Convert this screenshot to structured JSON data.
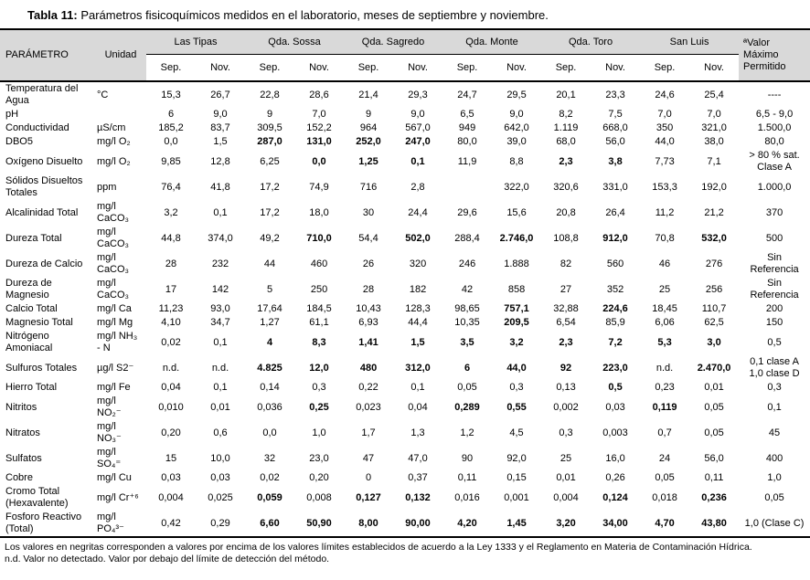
{
  "title": {
    "label": "Tabla 11:",
    "text": "Parámetros fisicoquímicos medidos en el laboratorio, meses de septiembre y noviembre."
  },
  "table": {
    "param_header": "PARÁMETRO",
    "unit_header": "Unidad",
    "limit_header": "ªValor\nMáximo\nPermitido",
    "stations": [
      "Las Tipas",
      "Qda. Sossa",
      "Qda. Sagredo",
      "Qda. Monte",
      "Qda. Toro",
      "San Luis"
    ],
    "months": [
      "Sep.",
      "Nov."
    ],
    "header_bg_color": "#d9d9d9",
    "rows": [
      {
        "param": "Temperatura del Agua",
        "unit": "°C",
        "values": [
          "15,3",
          "26,7",
          "22,8",
          "28,6",
          "21,4",
          "29,3",
          "24,7",
          "29,5",
          "20,1",
          "23,3",
          "24,6",
          "25,4"
        ],
        "bold": [],
        "limit": "----"
      },
      {
        "param": "pH",
        "unit": "",
        "values": [
          "6",
          "9,0",
          "9",
          "7,0",
          "9",
          "9,0",
          "6,5",
          "9,0",
          "8,2",
          "7,5",
          "7,0",
          "7,0"
        ],
        "bold": [],
        "limit": "6,5 - 9,0"
      },
      {
        "param": "Conductividad",
        "unit": "µS/cm",
        "values": [
          "185,2",
          "83,7",
          "309,5",
          "152,2",
          "964",
          "567,0",
          "949",
          "642,0",
          "1.119",
          "668,0",
          "350",
          "321,0"
        ],
        "bold": [],
        "limit": "1.500,0"
      },
      {
        "param": "DBO5",
        "unit": "mg/l O₂",
        "values": [
          "0,0",
          "1,5",
          "287,0",
          "131,0",
          "252,0",
          "247,0",
          "80,0",
          "39,0",
          "68,0",
          "56,0",
          "44,0",
          "38,0"
        ],
        "bold": [
          2,
          3,
          4,
          5
        ],
        "limit": "80,0"
      },
      {
        "param": "Oxígeno Disuelto",
        "unit": "mg/l O₂",
        "values": [
          "9,85",
          "12,8",
          "6,25",
          "0,0",
          "1,25",
          "0,1",
          "11,9",
          "8,8",
          "2,3",
          "3,8",
          "7,73",
          "7,1"
        ],
        "bold": [
          3,
          4,
          5,
          8,
          9
        ],
        "limit": "> 80 % sat.\nClase A"
      },
      {
        "param": "Sólidos Disueltos Totales",
        "unit": "ppm",
        "values": [
          "76,4",
          "41,8",
          "17,2",
          "74,9",
          "716",
          "2,8",
          "",
          "322,0",
          "320,6",
          "331,0",
          "153,3",
          "192,0"
        ],
        "bold": [],
        "limit": "1.000,0"
      },
      {
        "param": "Alcalinidad Total",
        "unit": "mg/l\nCaCO₃",
        "values": [
          "3,2",
          "0,1",
          "17,2",
          "18,0",
          "30",
          "24,4",
          "29,6",
          "15,6",
          "20,8",
          "26,4",
          "11,2",
          "21,2"
        ],
        "bold": [],
        "limit": "370"
      },
      {
        "param": "Dureza Total",
        "unit": "mg/l\nCaCO₃",
        "values": [
          "44,8",
          "374,0",
          "49,2",
          "710,0",
          "54,4",
          "502,0",
          "288,4",
          "2.746,0",
          "108,8",
          "912,0",
          "70,8",
          "532,0"
        ],
        "bold": [
          3,
          5,
          7,
          9,
          11
        ],
        "limit": "500"
      },
      {
        "param": "Dureza de Calcio",
        "unit": "mg/l\nCaCO₃",
        "values": [
          "28",
          "232",
          "44",
          "460",
          "26",
          "320",
          "246",
          "1.888",
          "82",
          "560",
          "46",
          "276"
        ],
        "bold": [],
        "limit": "Sin\nReferencia"
      },
      {
        "param": "Dureza de Magnesio",
        "unit": "mg/l\nCaCO₃",
        "values": [
          "17",
          "142",
          "5",
          "250",
          "28",
          "182",
          "42",
          "858",
          "27",
          "352",
          "25",
          "256"
        ],
        "bold": [],
        "limit": "Sin\nReferencia"
      },
      {
        "param": "Calcio Total",
        "unit": "mg/l Ca",
        "values": [
          "11,23",
          "93,0",
          "17,64",
          "184,5",
          "10,43",
          "128,3",
          "98,65",
          "757,1",
          "32,88",
          "224,6",
          "18,45",
          "110,7"
        ],
        "bold": [
          7,
          9
        ],
        "limit": "200"
      },
      {
        "param": "Magnesio Total",
        "unit": "mg/l Mg",
        "values": [
          "4,10",
          "34,7",
          "1,27",
          "61,1",
          "6,93",
          "44,4",
          "10,35",
          "209,5",
          "6,54",
          "85,9",
          "6,06",
          "62,5"
        ],
        "bold": [
          7
        ],
        "limit": "150"
      },
      {
        "param": "Nitrógeno Amoniacal",
        "unit": "mg/l NH₃\n- N",
        "values": [
          "0,02",
          "0,1",
          "4",
          "8,3",
          "1,41",
          "1,5",
          "3,5",
          "3,2",
          "2,3",
          "7,2",
          "5,3",
          "3,0"
        ],
        "bold": [
          2,
          3,
          4,
          5,
          6,
          7,
          8,
          9,
          10,
          11
        ],
        "limit": "0,5"
      },
      {
        "param": "Sulfuros Totales",
        "unit": "µg/l S2⁻",
        "values": [
          "n.d.",
          "n.d.",
          "4.825",
          "12,0",
          "480",
          "312,0",
          "6",
          "44,0",
          "92",
          "223,0",
          "n.d.",
          "2.470,0"
        ],
        "bold": [
          2,
          3,
          4,
          5,
          6,
          7,
          8,
          9,
          11
        ],
        "limit": "0,1 clase A\n1,0 clase D"
      },
      {
        "param": "Hierro Total",
        "unit": "mg/l Fe",
        "values": [
          "0,04",
          "0,1",
          "0,14",
          "0,3",
          "0,22",
          "0,1",
          "0,05",
          "0,3",
          "0,13",
          "0,5",
          "0,23",
          "0,01"
        ],
        "bold": [
          9
        ],
        "limit": "0,3"
      },
      {
        "param": "Nitritos",
        "unit": "mg/l\nNO₂⁻",
        "values": [
          "0,010",
          "0,01",
          "0,036",
          "0,25",
          "0,023",
          "0,04",
          "0,289",
          "0,55",
          "0,002",
          "0,03",
          "0,119",
          "0,05"
        ],
        "bold": [
          3,
          6,
          7,
          10
        ],
        "limit": "0,1"
      },
      {
        "param": "Nitratos",
        "unit": "mg/l\nNO₃⁻",
        "values": [
          "0,20",
          "0,6",
          "0,0",
          "1,0",
          "1,7",
          "1,3",
          "1,2",
          "4,5",
          "0,3",
          "0,003",
          "0,7",
          "0,05"
        ],
        "bold": [],
        "limit": "45"
      },
      {
        "param": "Sulfatos",
        "unit": "mg/l\nSO₄⁼",
        "values": [
          "15",
          "10,0",
          "32",
          "23,0",
          "47",
          "47,0",
          "90",
          "92,0",
          "25",
          "16,0",
          "24",
          "56,0"
        ],
        "bold": [],
        "limit": "400"
      },
      {
        "param": "Cobre",
        "unit": "mg/l Cu",
        "values": [
          "0,03",
          "0,03",
          "0,02",
          "0,20",
          "0",
          "0,37",
          "0,11",
          "0,15",
          "0,01",
          "0,26",
          "0,05",
          "0,11"
        ],
        "bold": [],
        "limit": "1,0"
      },
      {
        "param": "Cromo Total (Hexavalente)",
        "unit": "mg/l Cr⁺⁶",
        "values": [
          "0,004",
          "0,025",
          "0,059",
          "0,008",
          "0,127",
          "0,132",
          "0,016",
          "0,001",
          "0,004",
          "0,124",
          "0,018",
          "0,236"
        ],
        "bold": [
          2,
          4,
          5,
          9,
          11
        ],
        "limit": "0,05"
      },
      {
        "param": "Fosforo Reactivo (Total)",
        "unit": "mg/l\nPO₄³⁻",
        "values": [
          "0,42",
          "0,29",
          "6,60",
          "50,90",
          "8,00",
          "90,00",
          "4,20",
          "1,45",
          "3,20",
          "34,00",
          "4,70",
          "43,80"
        ],
        "bold": [
          2,
          3,
          4,
          5,
          6,
          7,
          8,
          9,
          10,
          11
        ],
        "limit": "1,0 (Clase C)"
      }
    ]
  },
  "footnotes": [
    "Los valores en negritas corresponden a valores por encima de los valores límites establecidos de acuerdo a la Ley 1333 y el Reglamento en Materia de Contaminación Hídrica.",
    "n.d. Valor no detectado. Valor por debajo del límite de detección del método."
  ]
}
